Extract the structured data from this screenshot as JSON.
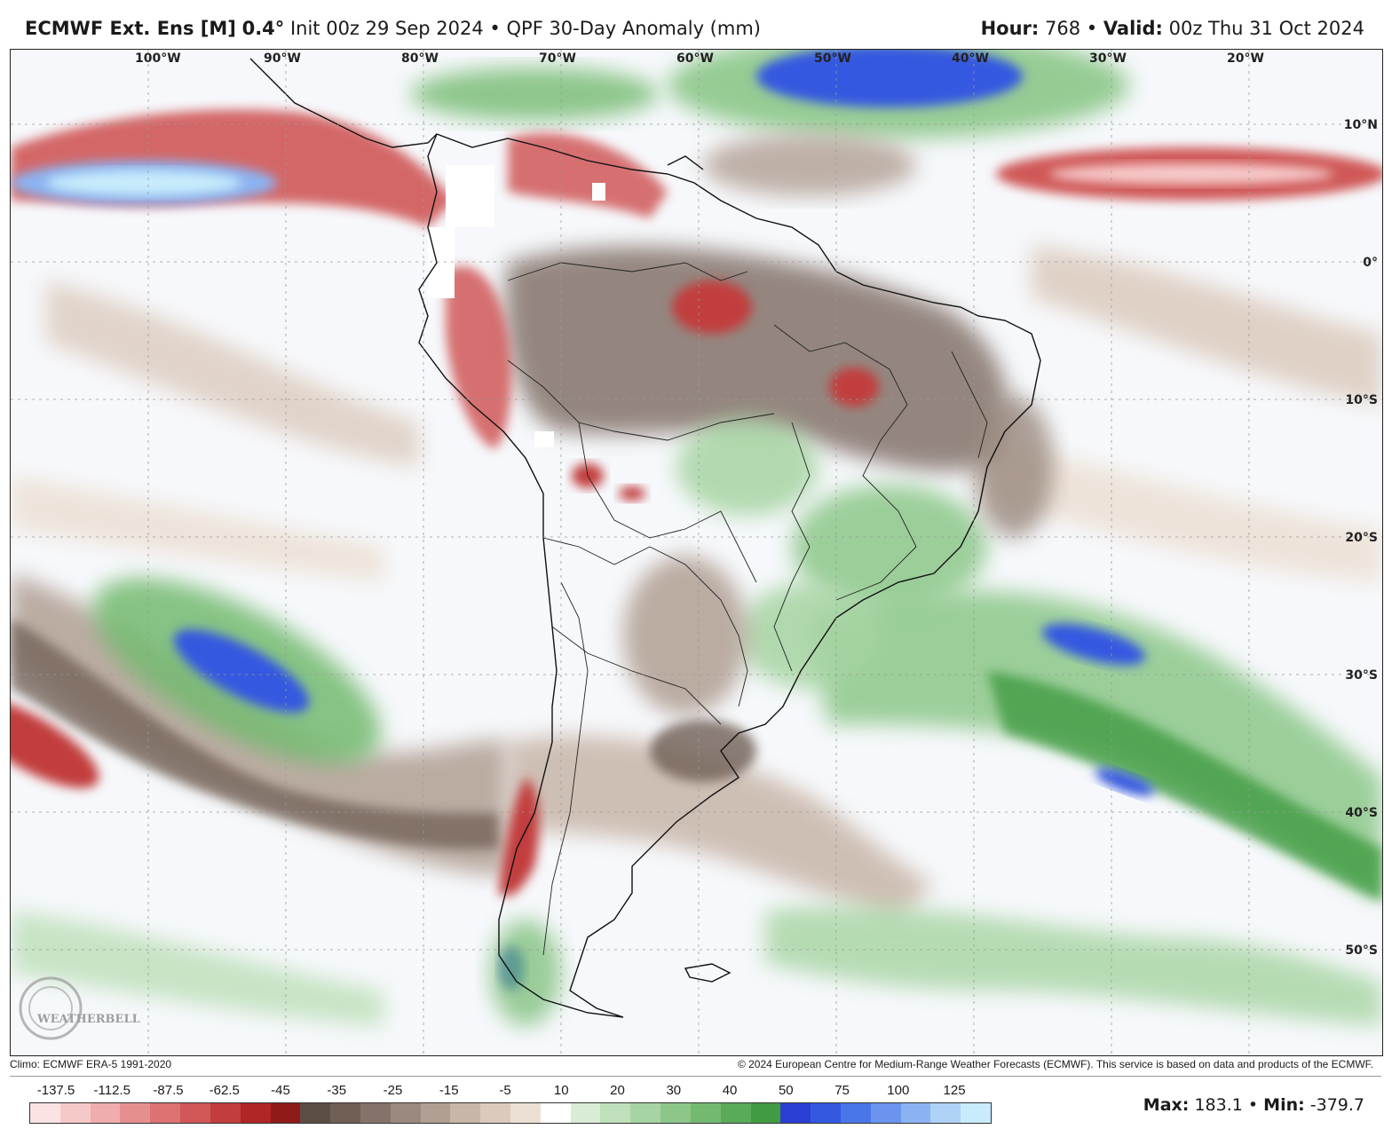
{
  "header": {
    "model": "ECMWF Ext. Ens [M]",
    "resolution": "0.4°",
    "init": "Init 00z 29 Sep 2024",
    "separator": "•",
    "product": "QPF 30-Day Anomaly (mm)",
    "hour_label": "Hour:",
    "hour_value": "768",
    "valid_label": "Valid:",
    "valid_value": "00z Thu 31 Oct 2024"
  },
  "map": {
    "lon_labels": [
      "100°W",
      "90°W",
      "80°W",
      "70°W",
      "60°W",
      "50°W",
      "40°W",
      "30°W",
      "20°W"
    ],
    "lat_labels": [
      "10°N",
      "0°",
      "10°S",
      "20°S",
      "30°S",
      "40°S",
      "50°S"
    ],
    "watermark": "WEATHERBELL"
  },
  "footer": {
    "climo": "Climo: ECMWF ERA-5 1991-2020",
    "copyright": "© 2024 European Centre for Medium-Range Weather Forecasts (ECMWF). This service is based on data and products of the ECMWF."
  },
  "colorbar": {
    "labels": [
      "-137.5",
      "-112.5",
      "-87.5",
      "-62.5",
      "-45",
      "-35",
      "-25",
      "-15",
      "-5",
      "10",
      "20",
      "30",
      "40",
      "50",
      "75",
      "100",
      "125"
    ],
    "colors": [
      "#fbe3e3",
      "#f6c9c9",
      "#efadad",
      "#e68f8f",
      "#dc7272",
      "#d05858",
      "#c23d3d",
      "#b02525",
      "#8f1a1a",
      "#5c4d45",
      "#6f5f55",
      "#84736a",
      "#9a897e",
      "#b19f93",
      "#c8b6a8",
      "#dccbbd",
      "#ece0d4",
      "#ffffff",
      "#d9ecd6",
      "#bfe0bb",
      "#a6d4a2",
      "#8cc789",
      "#73ba70",
      "#5aab58",
      "#419b42",
      "#2b3fd4",
      "#3459e0",
      "#4a76e8",
      "#6a94ee",
      "#8bb3f2",
      "#aed3f7",
      "#c8ecfb"
    ]
  },
  "stats": {
    "max_label": "Max:",
    "max_value": "183.1",
    "min_label": "Min:",
    "min_value": "-379.7"
  }
}
